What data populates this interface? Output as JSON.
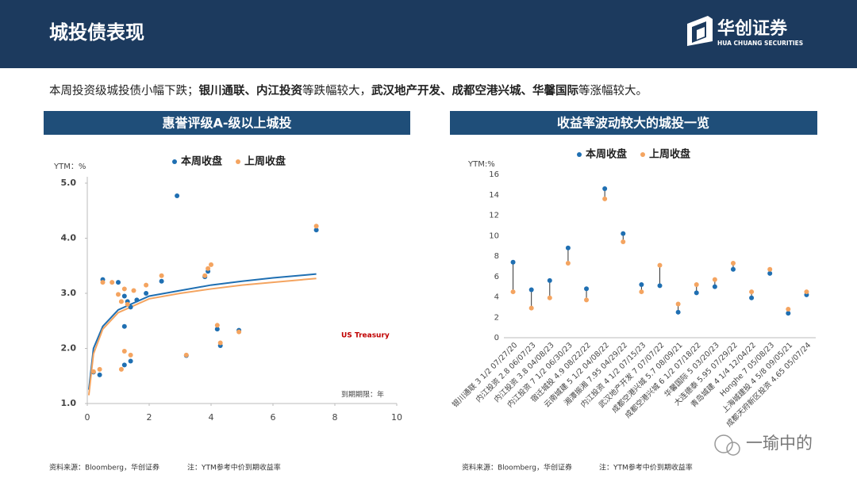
{
  "header": {
    "title": "城投债表现",
    "logo_name": "华创证券",
    "logo_sub": "HUA CHUANG SECURITIES"
  },
  "summary": [
    {
      "text": "本周投资级城投债小幅下跌；",
      "bold": false
    },
    {
      "text": "银川通联、内江投资",
      "bold": true
    },
    {
      "text": "等跌幅较大，",
      "bold": false
    },
    {
      "text": "武汉地产开发、成都空港兴城、华馨国际",
      "bold": true
    },
    {
      "text": "等涨幅较大。",
      "bold": false
    }
  ],
  "chart_data": [
    {
      "type": "scatter",
      "title": "惠誉评级A-级以上城投",
      "y_label": "YTM：%",
      "x_label": "到期期限：年",
      "annotation": "US Treasury",
      "annotation_color": "#c00000",
      "xlim": [
        0,
        10
      ],
      "xticks": [
        0,
        2,
        4,
        6,
        8,
        10
      ],
      "ylim": [
        1,
        5
      ],
      "yticks": [
        {
          "value": 1,
          "label": "1.0"
        },
        {
          "value": 2,
          "label": "2.0"
        },
        {
          "value": 3,
          "label": "3.0"
        },
        {
          "value": 4,
          "label": "4.0"
        },
        {
          "value": 5,
          "label": "5.0"
        }
      ],
      "series": [
        {
          "name": "本周收盘",
          "color": "#1f6fb2",
          "x": [
            0.2,
            0.4,
            0.5,
            1.0,
            1.2,
            1.2,
            1.2,
            1.4,
            1.3,
            1.4,
            1.6,
            1.9,
            2.4,
            2.9,
            3.2,
            3.8,
            3.9,
            4.2,
            4.3,
            4.9,
            7.4
          ],
          "values": [
            1.57,
            1.52,
            3.25,
            3.2,
            2.4,
            1.7,
            2.95,
            1.77,
            2.85,
            2.75,
            2.88,
            3.0,
            3.22,
            4.77,
            1.87,
            3.3,
            3.4,
            2.35,
            2.05,
            2.33,
            4.15
          ]
        },
        {
          "name": "上周收盘",
          "color": "#f4a460",
          "x": [
            0.2,
            0.4,
            0.5,
            0.8,
            1.0,
            1.1,
            1.1,
            1.2,
            1.2,
            1.3,
            1.4,
            1.5,
            1.9,
            2.4,
            3.2,
            3.8,
            3.9,
            4.0,
            4.2,
            4.3,
            4.9,
            7.4
          ],
          "values": [
            1.58,
            1.62,
            3.2,
            3.2,
            2.98,
            2.85,
            1.62,
            1.95,
            3.08,
            2.8,
            1.88,
            3.05,
            3.15,
            3.32,
            1.88,
            3.32,
            3.45,
            3.52,
            2.42,
            2.1,
            2.3,
            4.22
          ]
        }
      ],
      "trend_lines": [
        {
          "color": "#1f6fb2",
          "x": [
            0.05,
            0.2,
            0.5,
            1,
            2,
            3,
            4,
            5,
            6,
            7.4
          ],
          "values": [
            1.25,
            2.0,
            2.4,
            2.7,
            2.95,
            3.05,
            3.15,
            3.22,
            3.28,
            3.35
          ]
        },
        {
          "color": "#f4a460",
          "x": [
            0.05,
            0.2,
            0.5,
            1,
            2,
            3,
            4,
            5,
            6,
            7.4
          ],
          "values": [
            1.15,
            1.9,
            2.35,
            2.65,
            2.9,
            3.0,
            3.08,
            3.15,
            3.2,
            3.27
          ]
        }
      ]
    },
    {
      "type": "dumbbell",
      "title": "收益率波动较大的城投一览",
      "y_label": "YTM:%",
      "ylim": [
        0,
        16
      ],
      "yticks": [
        0,
        2,
        4,
        6,
        8,
        10,
        12,
        14,
        16
      ],
      "categories": [
        "银川通联 3 1/2 07/27/20",
        "内江投资 2.8 06/07/23",
        "内江投资 3.8 04/08/23",
        "内江投资 7 1/2 06/30/23",
        "宿迁城投 4.9 08/22/22",
        "云南城建 5 1/2 04/08/22",
        "湘潭振湘 7.95 04/29/22",
        "内江投资 4 1/2 07/15/23",
        "武汉地产开发 7 07/07/22",
        "成都空港兴城 5.7 08/09/21",
        "成都空港兴城 6 1/2 07/18/22",
        "华馨国际 5 03/20/23",
        "大连德泰 5.95 07/29/22",
        "青岛城建 4 1/4 12/04/22",
        "Honghe 7 05/08/23",
        "上海城建投 4 5/8 09/05/21",
        "成都天府新区投资 4.65 05/07/24"
      ],
      "series": [
        {
          "name": "本周收盘",
          "color": "#1f6fb2",
          "values": [
            7.4,
            4.7,
            5.6,
            8.8,
            4.8,
            14.6,
            10.2,
            5.2,
            5.1,
            2.5,
            4.4,
            5.0,
            6.7,
            3.9,
            6.3,
            2.4,
            4.2
          ]
        },
        {
          "name": "上周收盘",
          "color": "#f4a460",
          "values": [
            4.5,
            2.9,
            3.9,
            7.3,
            3.7,
            13.6,
            9.4,
            4.5,
            7.1,
            3.3,
            5.2,
            5.7,
            7.3,
            4.5,
            6.7,
            2.8,
            4.5
          ]
        }
      ]
    }
  ],
  "footnotes": [
    {
      "source": "资料来源：Bloomberg，华创证券",
      "note": "注：YTM参考中价到期收益率"
    },
    {
      "source": "资料来源：Bloomberg，华创证券",
      "note": "注：YTM参考中价到期收益率"
    }
  ],
  "watermark": "一瑜中的"
}
